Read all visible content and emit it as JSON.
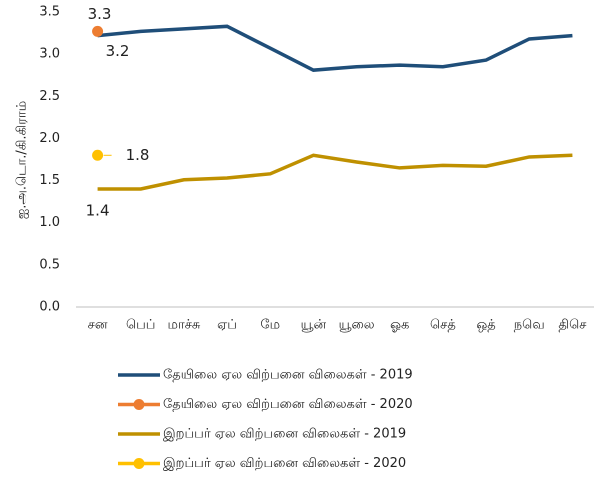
{
  "chart_data": {
    "type": "line",
    "y_label": "ஐ.அ.டொ./கி.கிராம்",
    "categories": [
      "சன",
      "பெப்",
      "மாச்சு",
      "ஏப்",
      "மே",
      "யூன்",
      "யூலை",
      "ஓக",
      "செத்",
      "ஒத்",
      "நவெ",
      "திசெ"
    ],
    "series": [
      {
        "name": "தேயிலை ஏல விற்பனை விலைகள் - 2019",
        "color": "#1f4e79",
        "values": [
          3.22,
          3.27,
          3.3,
          3.33,
          3.07,
          2.81,
          2.85,
          2.87,
          2.85,
          2.93,
          3.18,
          3.22
        ],
        "value_labels": [
          "3.2",
          null,
          null,
          null,
          null,
          null,
          null,
          null,
          null,
          null,
          null,
          null
        ]
      },
      {
        "name": "தேயிலை ஏல விற்பனை விலைகள் - 2020",
        "color": "#ed7d31",
        "values": [
          3.27,
          null,
          null,
          null,
          null,
          null,
          null,
          null,
          null,
          null,
          null,
          null
        ],
        "value_labels": [
          "3.3",
          null,
          null,
          null,
          null,
          null,
          null,
          null,
          null,
          null,
          null,
          null
        ]
      },
      {
        "name": "இறப்பர் ஏல விற்பனை விலைகள் - 2019",
        "color": "#bf9000",
        "values": [
          1.4,
          1.4,
          1.51,
          1.53,
          1.58,
          1.8,
          1.72,
          1.65,
          1.68,
          1.67,
          1.78,
          1.8
        ],
        "value_labels": [
          "1.4",
          null,
          null,
          null,
          null,
          null,
          null,
          null,
          null,
          null,
          null,
          null
        ]
      },
      {
        "name": "இறப்பர் ஏல விற்பனை விலைகள் - 2020",
        "color": "#ffc000",
        "values": [
          1.8,
          null,
          null,
          null,
          null,
          null,
          null,
          null,
          null,
          null,
          null,
          null
        ]
      }
    ],
    "ylim": [
      0,
      3.5
    ],
    "yticks": [
      {
        "value": 0,
        "label": "0.0"
      },
      0.5,
      {
        "value": 1,
        "label": "1.0"
      },
      1.5,
      {
        "value": 2,
        "label": "2.0"
      },
      2.5,
      {
        "value": 3,
        "label": "3.0"
      },
      3.5
    ],
    "grid": false,
    "legend": "bottom"
  }
}
